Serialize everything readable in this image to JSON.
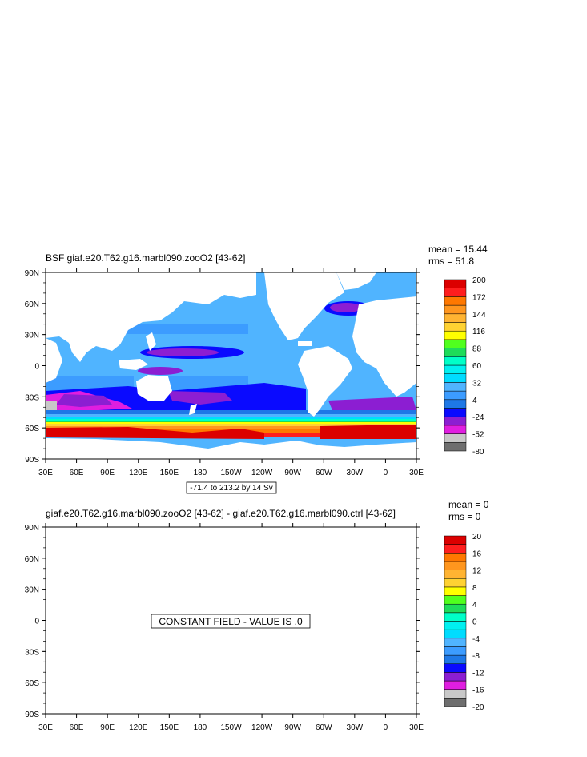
{
  "colors": {
    "grey_dark": "#6e6e6e",
    "grey_light": "#c8c8c8",
    "magenta": "#e01ee0",
    "purple": "#8c1ed2",
    "blue": "#0a0aff",
    "mid_blue": "#1e78e6",
    "light_blue": "#3c9cff",
    "sky": "#50b4ff",
    "cyan_light": "#00dcff",
    "cyan": "#00f0f0",
    "aqua": "#00ffc8",
    "green": "#1edc5a",
    "lime": "#50ff1e",
    "yellow": "#ffff00",
    "gold": "#ffd232",
    "light_orange": "#ffb432",
    "orange": "#ff961e",
    "dark_orange": "#ff7800",
    "red": "#ff1e1e",
    "dark_red": "#dc0000",
    "land": "#ffffff"
  },
  "panel_top": {
    "title": "BSF giaf.e20.T62.g16.marbl090.zooO2 [43-62]",
    "mean": "mean = 15.44",
    "rms": "rms = 51.8",
    "range_note": "-71.4 to 213.2 by 14 Sv",
    "colorbar_labels": [
      "-80",
      "-52",
      "-24",
      "4",
      "32",
      "60",
      "88",
      "116",
      "144",
      "172",
      "200"
    ]
  },
  "panel_bottom": {
    "title": "giaf.e20.T62.g16.marbl090.zooO2 [43-62] - giaf.e20.T62.g16.marbl090.ctrl [43-62]",
    "mean": "mean = 0",
    "rms": "rms = 0",
    "constant_note": "CONSTANT FIELD - VALUE IS .0",
    "colorbar_labels": [
      "-20",
      "-16",
      "-12",
      "-8",
      "-4",
      "0",
      "4",
      "8",
      "12",
      "16",
      "20"
    ]
  },
  "axes": {
    "lat_labels": [
      "90N",
      "60N",
      "30N",
      "0",
      "30S",
      "60S",
      "90S"
    ],
    "lon_labels": [
      "30E",
      "60E",
      "90E",
      "120E",
      "150E",
      "180",
      "150W",
      "120W",
      "90W",
      "60W",
      "30W",
      "0",
      "30E"
    ]
  }
}
